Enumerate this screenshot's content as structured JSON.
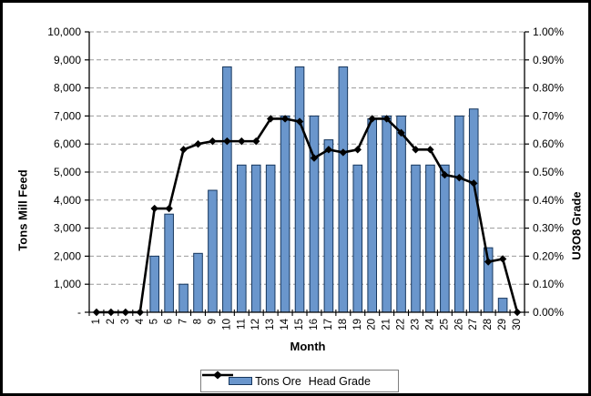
{
  "chart_data": {
    "type": "combo",
    "title": "",
    "xlabel": "Month",
    "categories": [
      "1",
      "2",
      "3",
      "4",
      "5",
      "6",
      "7",
      "8",
      "9",
      "10",
      "11",
      "12",
      "13",
      "14",
      "15",
      "16",
      "17",
      "18",
      "19",
      "20",
      "21",
      "22",
      "23",
      "24",
      "25",
      "26",
      "27",
      "28",
      "29",
      "30"
    ],
    "series": [
      {
        "name": "Tons Ore",
        "type": "bar",
        "axis": "left",
        "fill_color": "#6A96CC",
        "border_color": "#17375E",
        "values": [
          0,
          0,
          0,
          0,
          2000,
          3500,
          1000,
          2100,
          4350,
          8750,
          5250,
          5250,
          5250,
          7000,
          8750,
          7000,
          6150,
          8750,
          5250,
          6900,
          7000,
          7000,
          5250,
          5250,
          5250,
          7000,
          7250,
          2300,
          500,
          0
        ]
      },
      {
        "name": "Head Grade",
        "type": "line",
        "axis": "right",
        "color": "#000000",
        "marker": "diamond",
        "values_pct": [
          0.0,
          0.0,
          0.0,
          0.0,
          0.37,
          0.37,
          0.58,
          0.6,
          0.61,
          0.61,
          0.61,
          0.61,
          0.69,
          0.69,
          0.68,
          0.55,
          0.58,
          0.57,
          0.58,
          0.69,
          0.69,
          0.64,
          0.58,
          0.58,
          0.49,
          0.48,
          0.46,
          0.18,
          0.19,
          0.0
        ]
      }
    ],
    "left_axis": {
      "title": "Tons Mill Feed",
      "min": 0,
      "max": 10000,
      "step": 1000,
      "tick_labels": [
        "-",
        "1,000",
        "2,000",
        "3,000",
        "4,000",
        "5,000",
        "6,000",
        "7,000",
        "8,000",
        "9,000",
        "10,000"
      ]
    },
    "right_axis": {
      "title": "U3O8 Grade",
      "min": 0,
      "max": 1.0,
      "step": 0.1,
      "tick_labels": [
        "0.00%",
        "0.10%",
        "0.20%",
        "0.30%",
        "0.40%",
        "0.50%",
        "0.60%",
        "0.70%",
        "0.80%",
        "0.90%",
        "1.00%"
      ]
    },
    "grid": "horizontal-dashed",
    "gridline_color": "#999999",
    "legend_position": "bottom",
    "legend_entries": [
      "Tons Ore",
      "Head Grade"
    ]
  }
}
